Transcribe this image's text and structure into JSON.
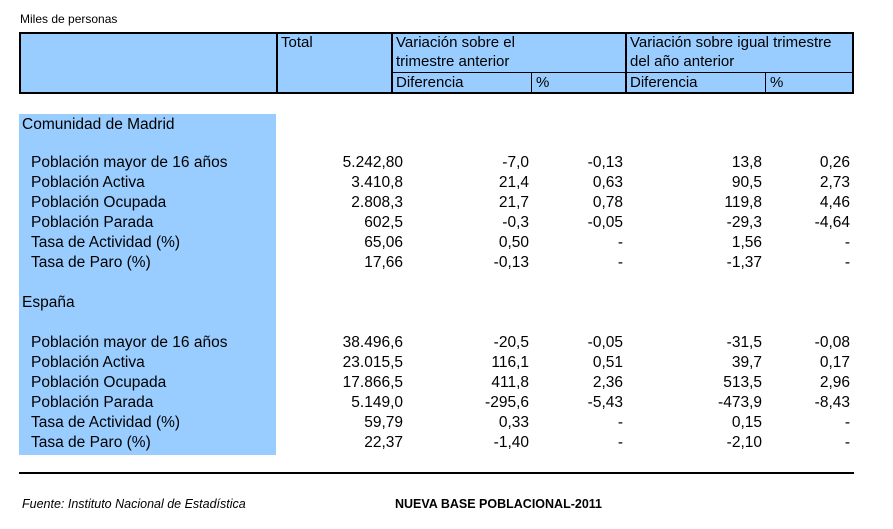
{
  "unit_label": "Miles de personas",
  "header": {
    "total": "Total",
    "var_prev_quarter": [
      "Variación sobre el",
      "trimestre anterior"
    ],
    "var_same_quarter": [
      "Variación sobre igual trimestre",
      "del año anterior"
    ],
    "diff": "Diferencia",
    "pct": "%"
  },
  "sections": [
    {
      "title": "Comunidad de Madrid",
      "rows": [
        {
          "label": "Población mayor de 16 años",
          "total": "5.242,80",
          "d1": "-7,0",
          "p1": "-0,13",
          "d2": "13,8",
          "p2": "0,26"
        },
        {
          "label": "Población Activa",
          "total": "3.410,8",
          "d1": "21,4",
          "p1": "0,63",
          "d2": "90,5",
          "p2": "2,73"
        },
        {
          "label": "Población Ocupada",
          "total": "2.808,3",
          "d1": "21,7",
          "p1": "0,78",
          "d2": "119,8",
          "p2": "4,46"
        },
        {
          "label": "Población Parada",
          "total": "602,5",
          "d1": "-0,3",
          "p1": "-0,05",
          "d2": "-29,3",
          "p2": "-4,64"
        },
        {
          "label": "Tasa de Actividad (%)",
          "total": "65,06",
          "d1": "0,50",
          "p1": "-",
          "d2": "1,56",
          "p2": "-"
        },
        {
          "label": "Tasa de Paro (%)",
          "total": "17,66",
          "d1": "-0,13",
          "p1": "-",
          "d2": "-1,37",
          "p2": "-"
        }
      ]
    },
    {
      "title": "España",
      "rows": [
        {
          "label": "Población mayor de 16 años",
          "total": "38.496,6",
          "d1": "-20,5",
          "p1": "-0,05",
          "d2": "-31,5",
          "p2": "-0,08"
        },
        {
          "label": "Población Activa",
          "total": "23.015,5",
          "d1": "116,1",
          "p1": "0,51",
          "d2": "39,7",
          "p2": "0,17"
        },
        {
          "label": "Población Ocupada",
          "total": "17.866,5",
          "d1": "411,8",
          "p1": "2,36",
          "d2": "513,5",
          "p2": "2,96"
        },
        {
          "label": "Población Parada",
          "total": "5.149,0",
          "d1": "-295,6",
          "p1": "-5,43",
          "d2": "-473,9",
          "p2": "-8,43"
        },
        {
          "label": "Tasa de Actividad (%)",
          "total": "59,79",
          "d1": "0,33",
          "p1": "-",
          "d2": "0,15",
          "p2": "-"
        },
        {
          "label": "Tasa de Paro (%)",
          "total": "22,37",
          "d1": "-1,40",
          "p1": "-",
          "d2": "-2,10",
          "p2": "-"
        }
      ]
    }
  ],
  "footer": {
    "source": "Fuente: Instituto Nacional de Estadística",
    "base": "NUEVA BASE POBLACIONAL-2011"
  },
  "colors": {
    "header_blue": "#99ccff"
  }
}
